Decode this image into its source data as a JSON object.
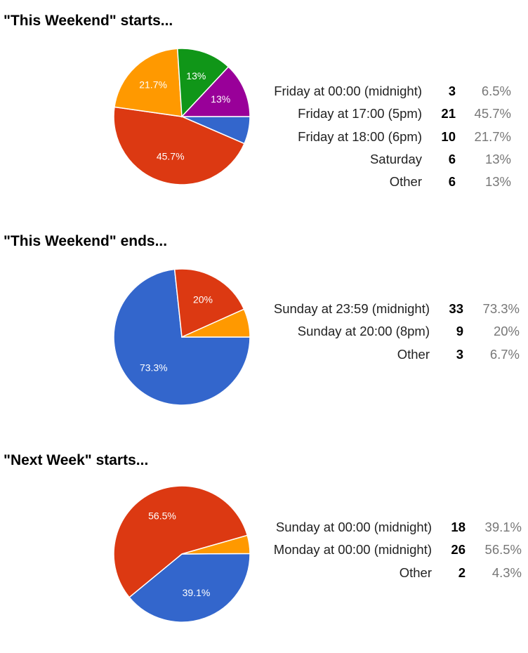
{
  "colors": {
    "blue": "#3366cc",
    "red": "#dc3912",
    "orange": "#ff9900",
    "green": "#109618",
    "purple": "#990099",
    "label_text": "#222222",
    "percent_text": "#777777"
  },
  "chart_data": [
    {
      "type": "pie",
      "title": "\"This Weekend\" starts...",
      "slices": [
        {
          "label": "Friday at 00:00 (midnight)",
          "count": "3",
          "percent": "6.5%",
          "value": 6.5,
          "color": "#3366cc",
          "slice_label": ""
        },
        {
          "label": "Friday at 17:00 (5pm)",
          "count": "21",
          "percent": "45.7%",
          "value": 45.7,
          "color": "#dc3912",
          "slice_label": "45.7%"
        },
        {
          "label": "Friday at 18:00 (6pm)",
          "count": "10",
          "percent": "21.7%",
          "value": 21.7,
          "color": "#ff9900",
          "slice_label": "21.7%"
        },
        {
          "label": "Saturday",
          "count": "6",
          "percent": "13%",
          "value": 13,
          "color": "#109618",
          "slice_label": "13%"
        },
        {
          "label": "Other",
          "count": "6",
          "percent": "13%",
          "value": 13,
          "color": "#990099",
          "slice_label": "13%"
        }
      ]
    },
    {
      "type": "pie",
      "title": "\"This Weekend\" ends...",
      "slices": [
        {
          "label": "Sunday at 23:59 (midnight)",
          "count": "33",
          "percent": "73.3%",
          "value": 73.3,
          "color": "#3366cc",
          "slice_label": "73.3%"
        },
        {
          "label": "Sunday at 20:00 (8pm)",
          "count": "9",
          "percent": "20%",
          "value": 20,
          "color": "#dc3912",
          "slice_label": "20%"
        },
        {
          "label": "Other",
          "count": "3",
          "percent": "6.7%",
          "value": 6.7,
          "color": "#ff9900",
          "slice_label": ""
        }
      ]
    },
    {
      "type": "pie",
      "title": "\"Next Week\" starts...",
      "slices": [
        {
          "label": "Sunday at 00:00 (midnight)",
          "count": "18",
          "percent": "39.1%",
          "value": 39.1,
          "color": "#3366cc",
          "slice_label": "39.1%"
        },
        {
          "label": "Monday at 00:00 (midnight)",
          "count": "26",
          "percent": "56.5%",
          "value": 56.5,
          "color": "#dc3912",
          "slice_label": "56.5%"
        },
        {
          "label": "Other",
          "count": "2",
          "percent": "4.3%",
          "value": 4.3,
          "color": "#ff9900",
          "slice_label": ""
        }
      ]
    }
  ]
}
